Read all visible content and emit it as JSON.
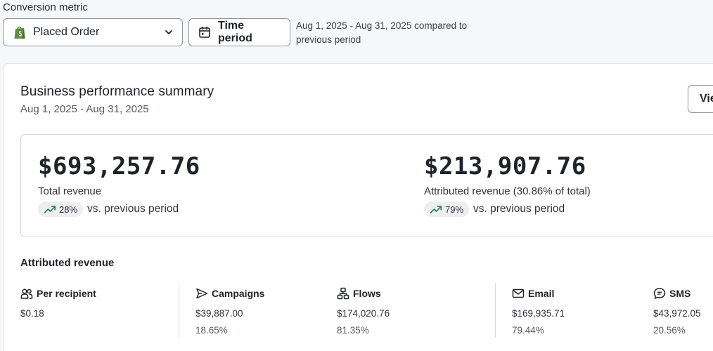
{
  "filters": {
    "metric_label": "Conversion metric",
    "metric_value": "Placed Order",
    "time_button": "Time period",
    "period_note": "Aug 1, 2025 - Aug 31, 2025 compared to previous period"
  },
  "summary": {
    "title": "Business performance summary",
    "date_range": "Aug 1, 2025 - Aug 31, 2025",
    "view_button": "Vie"
  },
  "kpis": [
    {
      "amount": "$693,257.76",
      "label": "Total revenue",
      "change": "28%",
      "compare": "vs. previous period"
    },
    {
      "amount": "$213,907.76",
      "label": "Attributed revenue (30.86% of total)",
      "change": "79%",
      "compare": "vs. previous period"
    }
  ],
  "attributed": {
    "title": "Attributed revenue",
    "stats": [
      {
        "label": "Per recipient",
        "value": "$0.18",
        "share": ""
      },
      {
        "label": "Campaigns",
        "value": "$39,887.00",
        "share": "18.65%"
      },
      {
        "label": "Flows",
        "value": "$174,020.76",
        "share": "81.35%"
      },
      {
        "label": "Email",
        "value": "$169,935.71",
        "share": "79.44%"
      },
      {
        "label": "SMS",
        "value": "$43,972.05",
        "share": "20.56%"
      }
    ]
  },
  "colors": {
    "trend_up": "#2e7d5b",
    "shopify_green": "#5e8e3e"
  },
  "icons": [
    "shopify-bag-icon",
    "chevron-down-icon",
    "calendar-icon",
    "trend-up-icon",
    "users-icon",
    "send-icon",
    "flow-icon",
    "mail-icon",
    "sms-icon"
  ]
}
